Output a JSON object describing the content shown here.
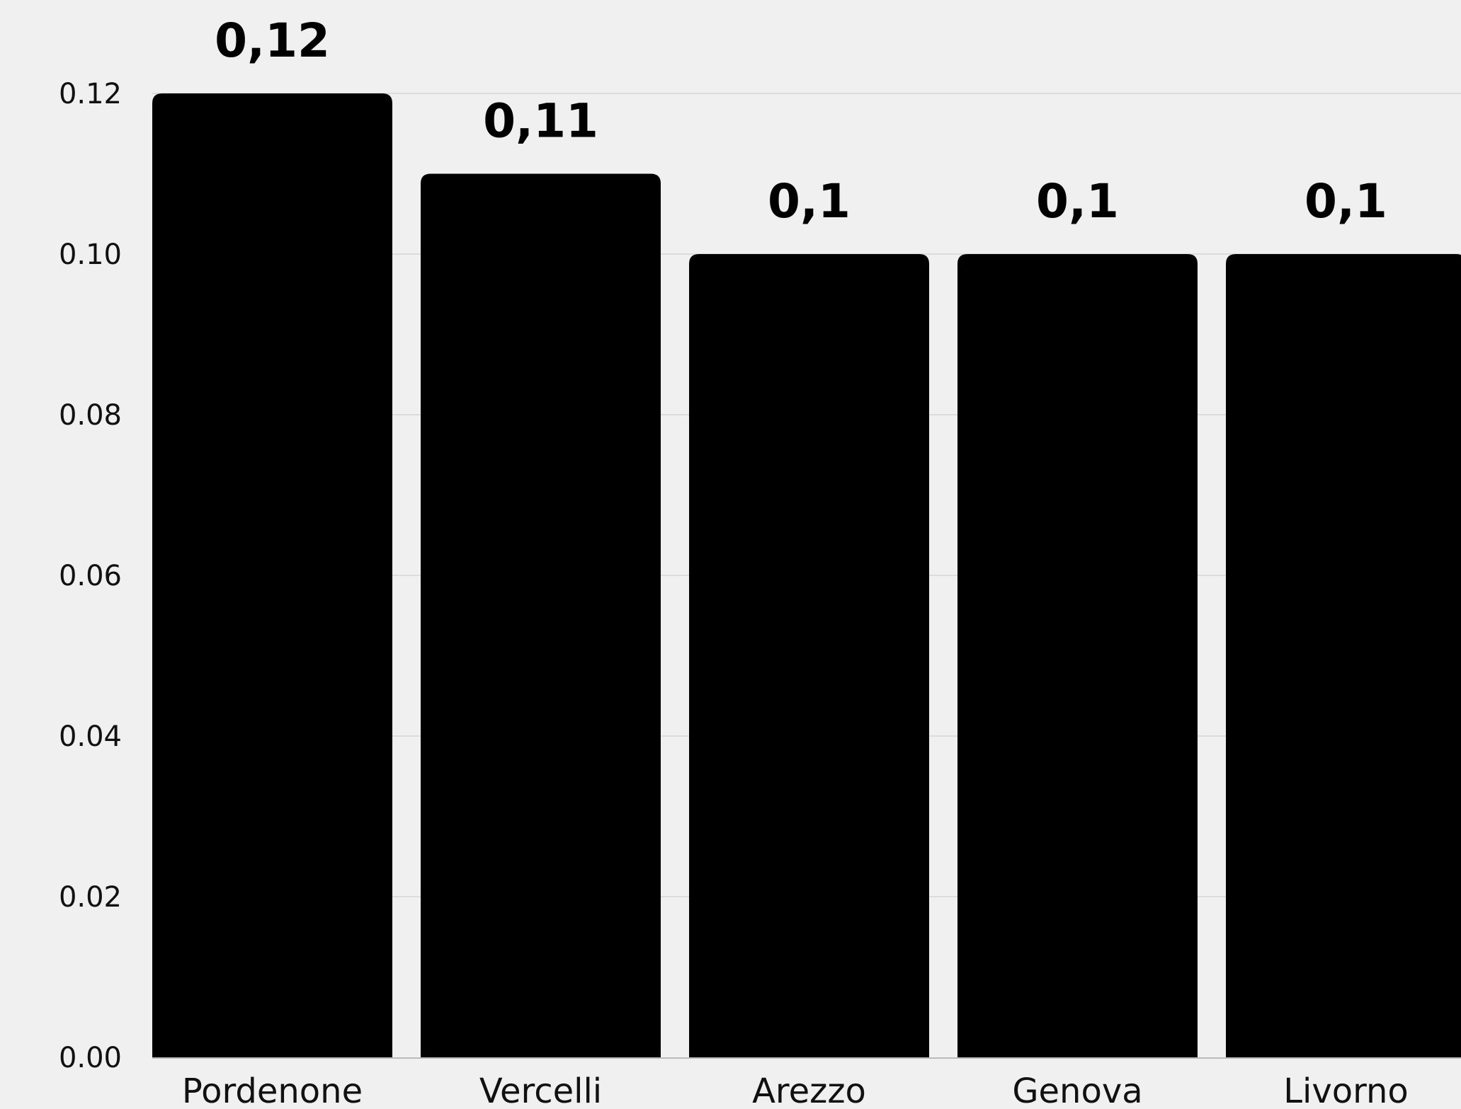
{
  "chart_data": {
    "type": "bar",
    "title": "",
    "xlabel": "",
    "ylabel": "",
    "categories": [
      "Pordenone",
      "Vercelli",
      "Arezzo",
      "Genova",
      "Livorno"
    ],
    "values": [
      0.12,
      0.11,
      0.1,
      0.1,
      0.1
    ],
    "data_labels": [
      "0,12",
      "0,11",
      "0,1",
      "0,1",
      "0,1"
    ],
    "ylim": [
      0,
      0.12
    ],
    "yticks": [
      0,
      0.02,
      0.04,
      0.06,
      0.08,
      0.1,
      0.12
    ],
    "ytick_labels": [
      "0.00",
      "0.02",
      "0.04",
      "0.06",
      "0.08",
      "0.10",
      "0.12"
    ],
    "grid": true,
    "legend": "none",
    "colors": {
      "bar": "#000000",
      "background": "#f0f0f0",
      "grid": "#dcdcdc",
      "axis": "#bbbbbb"
    }
  }
}
